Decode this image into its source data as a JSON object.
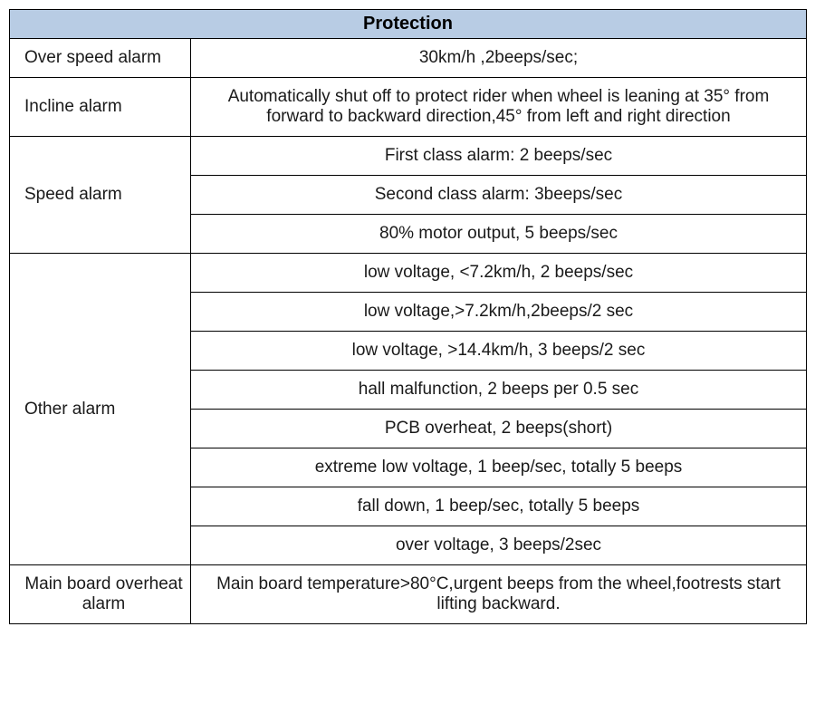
{
  "table": {
    "title": "Protection",
    "header_bg": "#b8cce4",
    "border_color": "#000000",
    "rows": [
      {
        "label": "Over speed alarm",
        "values": [
          "30km/h ,2beeps/sec;"
        ]
      },
      {
        "label": "Incline alarm",
        "values": [
          "Automatically shut off to protect rider when wheel is leaning at 35° from forward to backward direction,45° from left and right direction"
        ]
      },
      {
        "label": "Speed alarm",
        "values": [
          "First class alarm: 2 beeps/sec",
          "Second class alarm: 3beeps/sec",
          "80% motor output, 5 beeps/sec"
        ]
      },
      {
        "label": "Other alarm",
        "values": [
          "low voltage, <7.2km/h, 2 beeps/sec",
          "low voltage,>7.2km/h,2beeps/2 sec",
          "low voltage, >14.4km/h, 3 beeps/2 sec",
          "hall malfunction, 2 beeps per 0.5 sec",
          "PCB overheat, 2 beeps(short)",
          "extreme low voltage, 1 beep/sec, totally 5 beeps",
          "fall down, 1 beep/sec, totally 5 beeps",
          "over voltage, 3 beeps/2sec"
        ]
      },
      {
        "label": "Main board overheat alarm",
        "label_align": "center",
        "values": [
          "Main board temperature>80°C,urgent beeps from the wheel,footrests start lifting backward."
        ]
      }
    ]
  }
}
